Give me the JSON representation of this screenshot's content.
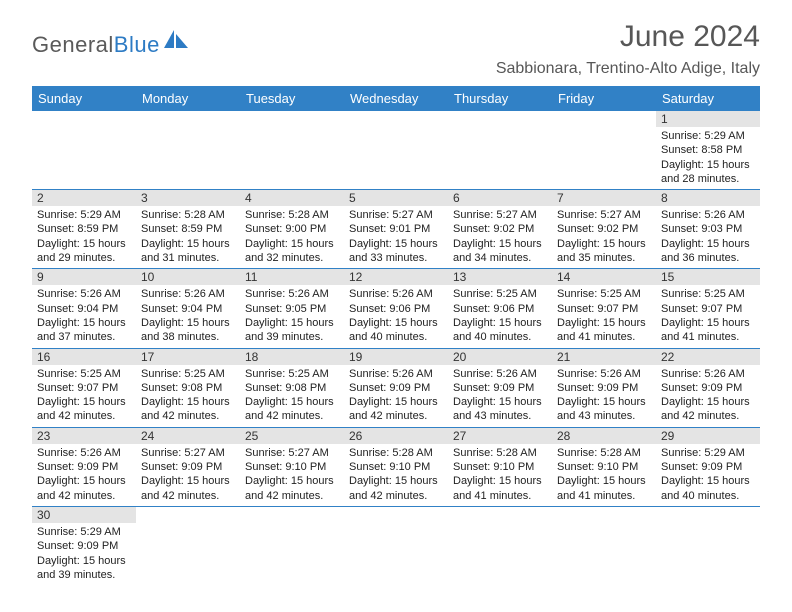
{
  "logo": {
    "part1": "General",
    "part2": "Blue",
    "icon_color": "#2d7bc4"
  },
  "title": "June 2024",
  "location": "Sabbionara, Trentino-Alto Adige, Italy",
  "header_bg": "#3181c6",
  "daynum_bg": "#e4e4e4",
  "border_color": "#3181c6",
  "day_names": [
    "Sunday",
    "Monday",
    "Tuesday",
    "Wednesday",
    "Thursday",
    "Friday",
    "Saturday"
  ],
  "weeks": [
    [
      null,
      null,
      null,
      null,
      null,
      null,
      {
        "n": "1",
        "sr": "Sunrise: 5:29 AM",
        "ss": "Sunset: 8:58 PM",
        "d1": "Daylight: 15 hours",
        "d2": "and 28 minutes."
      }
    ],
    [
      {
        "n": "2",
        "sr": "Sunrise: 5:29 AM",
        "ss": "Sunset: 8:59 PM",
        "d1": "Daylight: 15 hours",
        "d2": "and 29 minutes."
      },
      {
        "n": "3",
        "sr": "Sunrise: 5:28 AM",
        "ss": "Sunset: 8:59 PM",
        "d1": "Daylight: 15 hours",
        "d2": "and 31 minutes."
      },
      {
        "n": "4",
        "sr": "Sunrise: 5:28 AM",
        "ss": "Sunset: 9:00 PM",
        "d1": "Daylight: 15 hours",
        "d2": "and 32 minutes."
      },
      {
        "n": "5",
        "sr": "Sunrise: 5:27 AM",
        "ss": "Sunset: 9:01 PM",
        "d1": "Daylight: 15 hours",
        "d2": "and 33 minutes."
      },
      {
        "n": "6",
        "sr": "Sunrise: 5:27 AM",
        "ss": "Sunset: 9:02 PM",
        "d1": "Daylight: 15 hours",
        "d2": "and 34 minutes."
      },
      {
        "n": "7",
        "sr": "Sunrise: 5:27 AM",
        "ss": "Sunset: 9:02 PM",
        "d1": "Daylight: 15 hours",
        "d2": "and 35 minutes."
      },
      {
        "n": "8",
        "sr": "Sunrise: 5:26 AM",
        "ss": "Sunset: 9:03 PM",
        "d1": "Daylight: 15 hours",
        "d2": "and 36 minutes."
      }
    ],
    [
      {
        "n": "9",
        "sr": "Sunrise: 5:26 AM",
        "ss": "Sunset: 9:04 PM",
        "d1": "Daylight: 15 hours",
        "d2": "and 37 minutes."
      },
      {
        "n": "10",
        "sr": "Sunrise: 5:26 AM",
        "ss": "Sunset: 9:04 PM",
        "d1": "Daylight: 15 hours",
        "d2": "and 38 minutes."
      },
      {
        "n": "11",
        "sr": "Sunrise: 5:26 AM",
        "ss": "Sunset: 9:05 PM",
        "d1": "Daylight: 15 hours",
        "d2": "and 39 minutes."
      },
      {
        "n": "12",
        "sr": "Sunrise: 5:26 AM",
        "ss": "Sunset: 9:06 PM",
        "d1": "Daylight: 15 hours",
        "d2": "and 40 minutes."
      },
      {
        "n": "13",
        "sr": "Sunrise: 5:25 AM",
        "ss": "Sunset: 9:06 PM",
        "d1": "Daylight: 15 hours",
        "d2": "and 40 minutes."
      },
      {
        "n": "14",
        "sr": "Sunrise: 5:25 AM",
        "ss": "Sunset: 9:07 PM",
        "d1": "Daylight: 15 hours",
        "d2": "and 41 minutes."
      },
      {
        "n": "15",
        "sr": "Sunrise: 5:25 AM",
        "ss": "Sunset: 9:07 PM",
        "d1": "Daylight: 15 hours",
        "d2": "and 41 minutes."
      }
    ],
    [
      {
        "n": "16",
        "sr": "Sunrise: 5:25 AM",
        "ss": "Sunset: 9:07 PM",
        "d1": "Daylight: 15 hours",
        "d2": "and 42 minutes."
      },
      {
        "n": "17",
        "sr": "Sunrise: 5:25 AM",
        "ss": "Sunset: 9:08 PM",
        "d1": "Daylight: 15 hours",
        "d2": "and 42 minutes."
      },
      {
        "n": "18",
        "sr": "Sunrise: 5:25 AM",
        "ss": "Sunset: 9:08 PM",
        "d1": "Daylight: 15 hours",
        "d2": "and 42 minutes."
      },
      {
        "n": "19",
        "sr": "Sunrise: 5:26 AM",
        "ss": "Sunset: 9:09 PM",
        "d1": "Daylight: 15 hours",
        "d2": "and 42 minutes."
      },
      {
        "n": "20",
        "sr": "Sunrise: 5:26 AM",
        "ss": "Sunset: 9:09 PM",
        "d1": "Daylight: 15 hours",
        "d2": "and 43 minutes."
      },
      {
        "n": "21",
        "sr": "Sunrise: 5:26 AM",
        "ss": "Sunset: 9:09 PM",
        "d1": "Daylight: 15 hours",
        "d2": "and 43 minutes."
      },
      {
        "n": "22",
        "sr": "Sunrise: 5:26 AM",
        "ss": "Sunset: 9:09 PM",
        "d1": "Daylight: 15 hours",
        "d2": "and 42 minutes."
      }
    ],
    [
      {
        "n": "23",
        "sr": "Sunrise: 5:26 AM",
        "ss": "Sunset: 9:09 PM",
        "d1": "Daylight: 15 hours",
        "d2": "and 42 minutes."
      },
      {
        "n": "24",
        "sr": "Sunrise: 5:27 AM",
        "ss": "Sunset: 9:09 PM",
        "d1": "Daylight: 15 hours",
        "d2": "and 42 minutes."
      },
      {
        "n": "25",
        "sr": "Sunrise: 5:27 AM",
        "ss": "Sunset: 9:10 PM",
        "d1": "Daylight: 15 hours",
        "d2": "and 42 minutes."
      },
      {
        "n": "26",
        "sr": "Sunrise: 5:28 AM",
        "ss": "Sunset: 9:10 PM",
        "d1": "Daylight: 15 hours",
        "d2": "and 42 minutes."
      },
      {
        "n": "27",
        "sr": "Sunrise: 5:28 AM",
        "ss": "Sunset: 9:10 PM",
        "d1": "Daylight: 15 hours",
        "d2": "and 41 minutes."
      },
      {
        "n": "28",
        "sr": "Sunrise: 5:28 AM",
        "ss": "Sunset: 9:10 PM",
        "d1": "Daylight: 15 hours",
        "d2": "and 41 minutes."
      },
      {
        "n": "29",
        "sr": "Sunrise: 5:29 AM",
        "ss": "Sunset: 9:09 PM",
        "d1": "Daylight: 15 hours",
        "d2": "and 40 minutes."
      }
    ],
    [
      {
        "n": "30",
        "sr": "Sunrise: 5:29 AM",
        "ss": "Sunset: 9:09 PM",
        "d1": "Daylight: 15 hours",
        "d2": "and 39 minutes."
      },
      null,
      null,
      null,
      null,
      null,
      null
    ]
  ]
}
